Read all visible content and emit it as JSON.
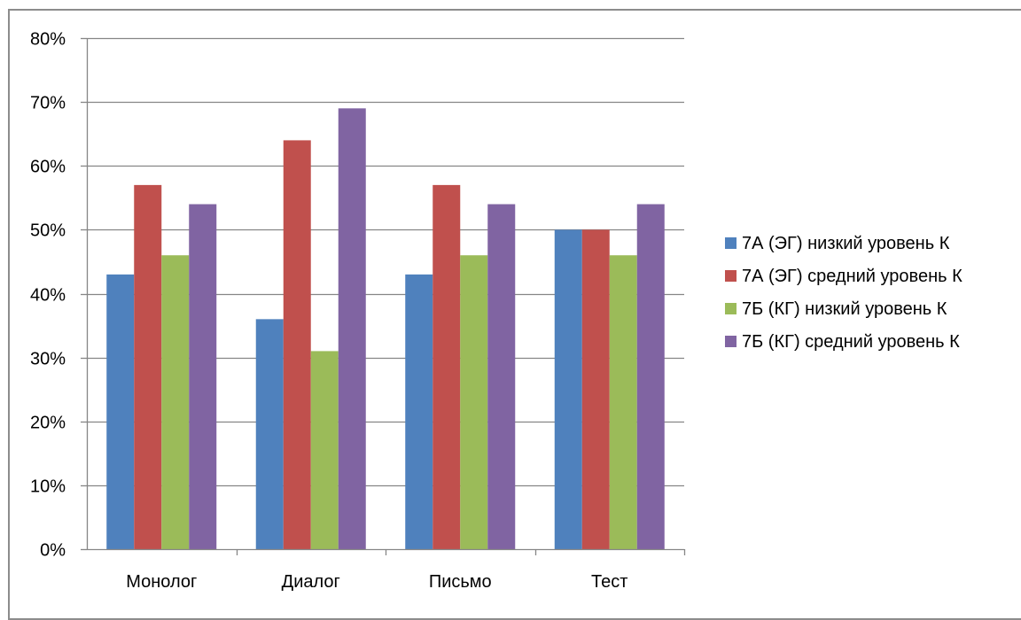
{
  "chart_data": {
    "type": "bar",
    "title": "",
    "xlabel": "",
    "ylabel": "",
    "ylim": [
      0,
      80
    ],
    "y_tick_step": 10,
    "y_tick_format": "percent",
    "grid": true,
    "legend_position": "right",
    "categories": [
      "Монолог",
      "Диалог",
      "Письмо",
      "Тест"
    ],
    "series": [
      {
        "name": "7А (ЭГ) низкий уровень К",
        "color": "#4f81bd",
        "values": [
          43,
          36,
          43,
          50
        ]
      },
      {
        "name": "7А (ЭГ) средний уровень К",
        "color": "#c0504d",
        "values": [
          57,
          64,
          57,
          50
        ]
      },
      {
        "name": "7Б (КГ) низкий уровень К",
        "color": "#9bbb59",
        "values": [
          46,
          31,
          46,
          46
        ]
      },
      {
        "name": "7Б (КГ) средний уровень К",
        "color": "#8064a2",
        "values": [
          54,
          69,
          54,
          54
        ]
      }
    ]
  }
}
